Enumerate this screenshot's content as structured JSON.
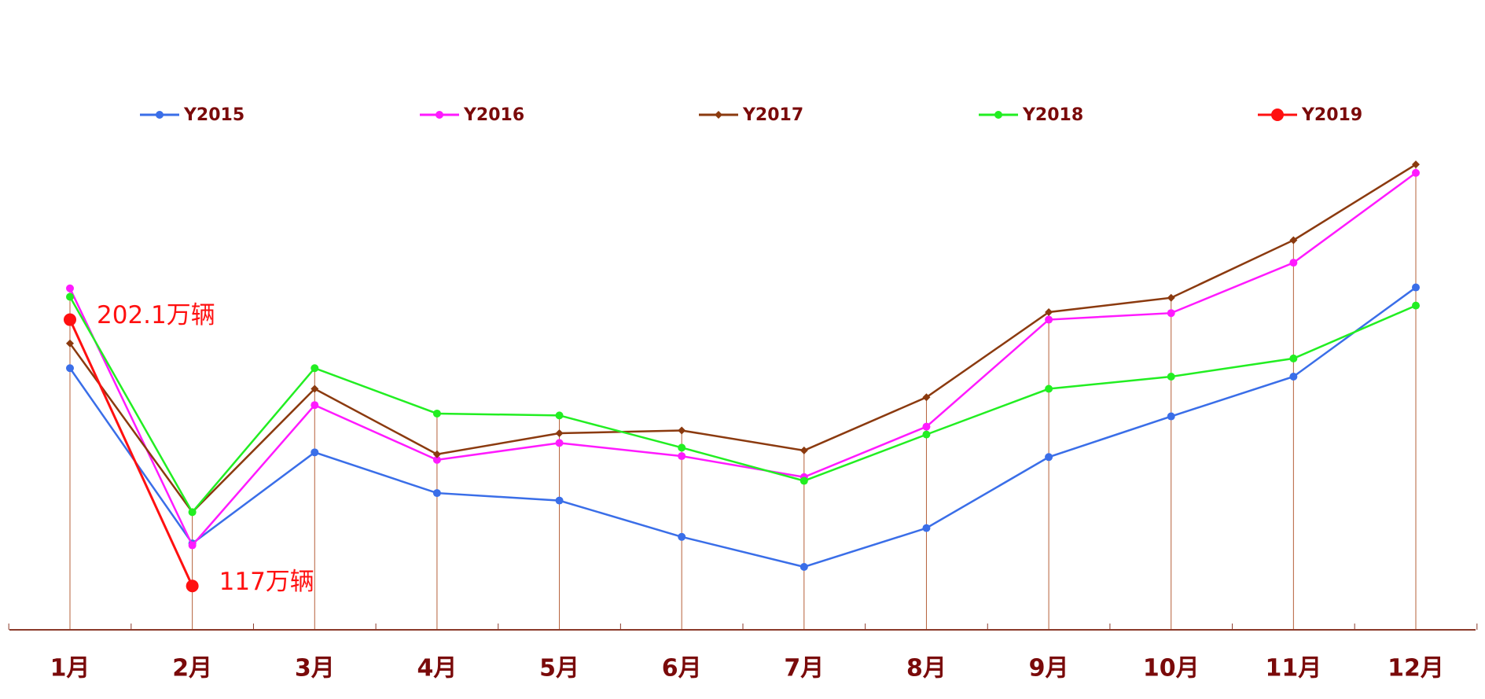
{
  "chart_data": {
    "type": "line",
    "categories": [
      "1月",
      "2月",
      "3月",
      "4月",
      "5月",
      "6月",
      "7月",
      "8月",
      "9月",
      "10月",
      "11月",
      "12月"
    ],
    "ylim": [
      103,
      255
    ],
    "series": [
      {
        "name": "Y2015",
        "color": "#3a6ee8",
        "marker": "circle",
        "values": [
          186.6,
          130.6,
          159.7,
          146.7,
          144.3,
          132.7,
          123.1,
          135.5,
          158.2,
          171.2,
          183.9,
          212.4
        ]
      },
      {
        "name": "Y2016",
        "color": "#ff1aff",
        "marker": "circle",
        "values": [
          212.1,
          130.0,
          174.8,
          157.3,
          162.7,
          158.5,
          151.8,
          167.9,
          202.1,
          204.2,
          220.3,
          249.0
        ]
      },
      {
        "name": "Y2017",
        "color": "#8b3a0f",
        "marker": "diamond",
        "values": [
          194.5,
          140.6,
          180.0,
          159.1,
          165.8,
          166.7,
          160.3,
          177.3,
          204.5,
          209.1,
          227.5,
          251.7
        ]
      },
      {
        "name": "Y2018",
        "color": "#22ee22",
        "marker": "circle",
        "values": [
          209.4,
          140.6,
          186.6,
          172.1,
          171.5,
          161.2,
          150.6,
          165.4,
          180.0,
          183.9,
          189.7,
          206.6
        ]
      },
      {
        "name": "Y2019",
        "color": "#ff1010",
        "marker": "big-circle",
        "values": [
          202.1,
          117,
          null,
          null,
          null,
          null,
          null,
          null,
          null,
          null,
          null,
          null
        ],
        "value_labels": [
          "202.1万辆",
          "117万辆",
          null,
          null,
          null,
          null,
          null,
          null,
          null,
          null,
          null,
          null
        ]
      }
    ]
  }
}
